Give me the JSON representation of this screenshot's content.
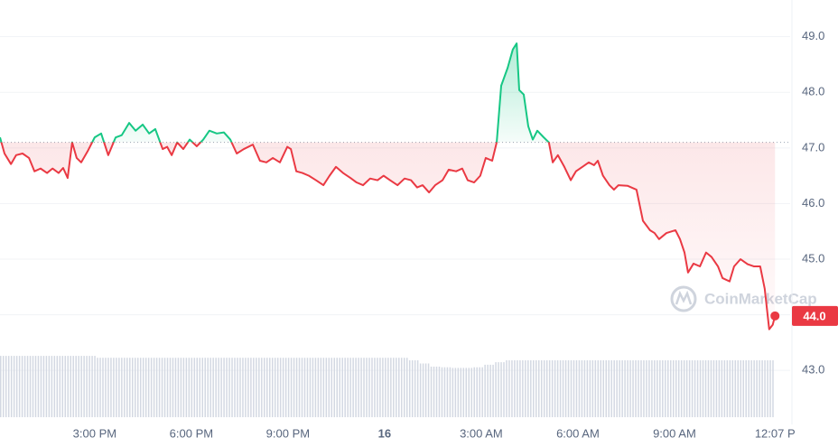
{
  "chart_data": {
    "type": "line",
    "x": [
      12.06,
      12.2,
      12.4,
      12.56,
      12.76,
      12.96,
      13.13,
      13.32,
      13.52,
      13.69,
      13.88,
      14.02,
      14.16,
      14.3,
      14.44,
      14.58,
      14.78,
      15.0,
      15.2,
      15.42,
      15.65,
      15.84,
      16.07,
      16.27,
      16.49,
      16.69,
      16.88,
      17.11,
      17.25,
      17.39,
      17.56,
      17.75,
      17.95,
      18.17,
      18.37,
      18.56,
      18.79,
      19.01,
      19.21,
      19.41,
      19.63,
      19.91,
      20.13,
      20.33,
      20.53,
      20.75,
      20.98,
      21.09,
      21.26,
      21.45,
      21.65,
      21.87,
      22.1,
      22.29,
      22.49,
      22.71,
      22.94,
      23.13,
      23.33,
      23.55,
      23.78,
      23.97,
      24.17,
      24.4,
      24.62,
      24.82,
      25.01,
      25.18,
      25.38,
      25.57,
      25.8,
      25.99,
      26.22,
      26.41,
      26.58,
      26.78,
      26.97,
      27.14,
      27.34,
      27.48,
      27.62,
      27.82,
      27.98,
      28.1,
      28.18,
      28.32,
      28.46,
      28.6,
      28.74,
      28.94,
      29.1,
      29.22,
      29.38,
      29.58,
      29.78,
      29.94,
      30.14,
      30.34,
      30.5,
      30.62,
      30.78,
      30.98,
      31.12,
      31.26,
      31.54,
      31.82,
      32.02,
      32.24,
      32.38,
      32.52,
      32.75,
      33.03,
      33.17,
      33.31,
      33.42,
      33.59,
      33.79,
      33.98,
      34.15,
      34.35,
      34.49,
      34.71,
      34.85,
      35.05,
      35.27,
      35.47,
      35.66,
      35.8,
      35.94,
      36.05,
      36.12
    ],
    "values": [
      47.19,
      46.9,
      46.71,
      46.87,
      46.9,
      46.82,
      46.58,
      46.63,
      46.55,
      46.63,
      46.55,
      46.64,
      46.46,
      47.1,
      46.82,
      46.74,
      46.94,
      47.19,
      47.26,
      46.87,
      47.19,
      47.23,
      47.45,
      47.31,
      47.42,
      47.26,
      47.34,
      46.98,
      47.02,
      46.87,
      47.1,
      46.98,
      47.15,
      47.03,
      47.15,
      47.31,
      47.26,
      47.28,
      47.15,
      46.9,
      46.98,
      47.06,
      46.77,
      46.74,
      46.82,
      46.74,
      47.02,
      46.98,
      46.58,
      46.55,
      46.5,
      46.42,
      46.33,
      46.5,
      46.66,
      46.55,
      46.46,
      46.38,
      46.33,
      46.45,
      46.42,
      46.5,
      46.42,
      46.33,
      46.45,
      46.42,
      46.29,
      46.33,
      46.2,
      46.33,
      46.42,
      46.61,
      46.58,
      46.63,
      46.42,
      46.38,
      46.5,
      46.82,
      46.77,
      47.1,
      48.12,
      48.44,
      48.77,
      48.88,
      48.04,
      47.96,
      47.39,
      47.15,
      47.31,
      47.19,
      47.1,
      46.74,
      46.87,
      46.66,
      46.42,
      46.58,
      46.66,
      46.74,
      46.69,
      46.77,
      46.5,
      46.33,
      46.25,
      46.33,
      46.32,
      46.25,
      45.69,
      45.52,
      45.47,
      45.36,
      45.47,
      45.52,
      45.36,
      45.12,
      44.76,
      44.92,
      44.87,
      45.12,
      45.04,
      44.87,
      44.66,
      44.6,
      44.87,
      45.0,
      44.91,
      44.87,
      44.87,
      44.47,
      43.74,
      43.82,
      43.98
    ],
    "baseline": 47.1,
    "up_color": "#16c784",
    "down_color": "#ea3943",
    "xlim": [
      12.06,
      36.59
    ],
    "xticks": [
      {
        "value": 15,
        "label": "3:00 PM"
      },
      {
        "value": 18,
        "label": "6:00 PM"
      },
      {
        "value": 21,
        "label": "9:00 PM"
      },
      {
        "value": 24,
        "label": "16"
      },
      {
        "value": 27,
        "label": "3:00 AM"
      },
      {
        "value": 30,
        "label": "6:00 AM"
      },
      {
        "value": 33,
        "label": "9:00 AM"
      },
      {
        "value": 36.12,
        "label": "12:07 P"
      }
    ],
    "ylim": [
      42.11,
      49.66
    ],
    "yticks": [
      {
        "value": 43,
        "label": "43.0"
      },
      {
        "value": 44,
        "label": "44.0"
      },
      {
        "value": 45,
        "label": "45.0"
      },
      {
        "value": 46,
        "label": "46.0"
      },
      {
        "value": 47,
        "label": "47.0"
      },
      {
        "value": 48,
        "label": "48.0"
      },
      {
        "value": 49,
        "label": "49.0"
      }
    ],
    "grid": true,
    "current": {
      "value": 43.98,
      "label": "44.0"
    },
    "watermark": "CoinMarketCap",
    "volume": {
      "color": "#d3d8e2",
      "ylim": [
        0,
        100
      ],
      "values": [
        97,
        97,
        97,
        97,
        97,
        97,
        97,
        97,
        97,
        94,
        94,
        94,
        94,
        94,
        94,
        94,
        94,
        94,
        94,
        94,
        94,
        94,
        94,
        94,
        94,
        94,
        94,
        94,
        94,
        94,
        94,
        94,
        94,
        94,
        94,
        94,
        94,
        94,
        90,
        85,
        80,
        79,
        78,
        78,
        79,
        83,
        87,
        90,
        90,
        90,
        90,
        90,
        90,
        90,
        90,
        90,
        90,
        90,
        90,
        90,
        90,
        90,
        90,
        90,
        90,
        90,
        90,
        90,
        90,
        90,
        90,
        90
      ]
    }
  }
}
